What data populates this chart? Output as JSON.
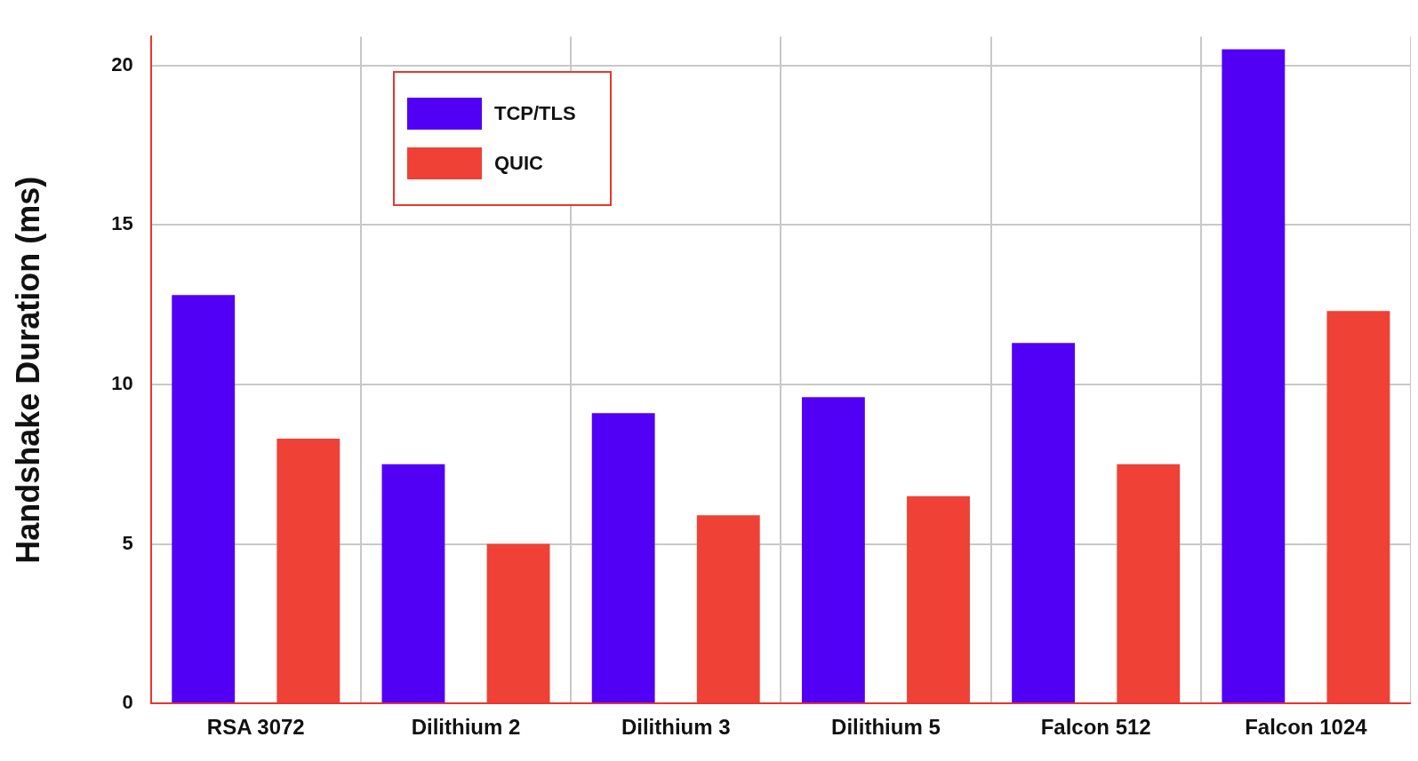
{
  "chart_data": {
    "type": "bar",
    "ylabel": "Handshake Duration (ms)",
    "categories": [
      "RSA 3072",
      "Dilithium 2",
      "Dilithium 3",
      "Dilithium 5",
      "Falcon 512",
      "Falcon 1024"
    ],
    "series": [
      {
        "name": "TCP/TLS",
        "color": "#5200f5",
        "values": [
          12.8,
          7.5,
          9.1,
          9.6,
          11.3,
          20.5
        ]
      },
      {
        "name": "QUIC",
        "color": "#ef4136",
        "values": [
          8.3,
          5.0,
          5.9,
          6.5,
          7.5,
          12.3
        ]
      }
    ],
    "ylim": [
      0,
      20.9
    ],
    "yticks": [
      0,
      5,
      10,
      15,
      20
    ],
    "grid": true,
    "legend": "top left"
  }
}
